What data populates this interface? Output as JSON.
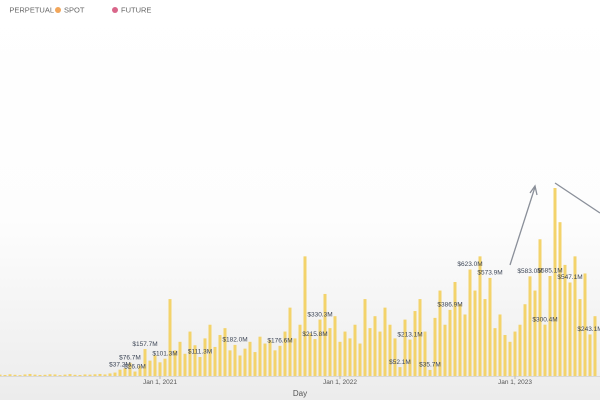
{
  "chart_data": {
    "type": "bar",
    "legend": [
      {
        "name": "PERPETUAL",
        "color": "#6f8fd6"
      },
      {
        "name": "SPOT",
        "color": "#f2a65a"
      },
      {
        "name": "FUTURE",
        "color": "#d9668a"
      }
    ],
    "x_label": "Day",
    "color": "#f3d36b",
    "categories": [
      null,
      null,
      null,
      null,
      null,
      null,
      null,
      null,
      null,
      null,
      null,
      null,
      null,
      null,
      null,
      null,
      null,
      null,
      null,
      null,
      null,
      null,
      null,
      null,
      null,
      null,
      null,
      null,
      null,
      null,
      null,
      null,
      "Jan 1, 2021",
      null,
      null,
      null,
      null,
      null,
      null,
      null,
      null,
      null,
      null,
      null,
      null,
      null,
      null,
      null,
      null,
      null,
      null,
      null,
      null,
      null,
      null,
      null,
      null,
      null,
      null,
      null,
      null,
      null,
      null,
      null,
      null,
      null,
      null,
      null,
      "Jan 1, 2022",
      null,
      null,
      null,
      null,
      null,
      null,
      null,
      null,
      null,
      null,
      null,
      null,
      null,
      null,
      null,
      null,
      null,
      null,
      null,
      null,
      null,
      null,
      null,
      null,
      null,
      null,
      null,
      null,
      null,
      null,
      null,
      null,
      null,
      null,
      "Jan 1, 2023",
      null,
      null,
      null,
      null,
      null,
      null,
      null,
      null,
      null,
      null,
      null,
      null,
      null,
      null,
      null,
      null
    ],
    "values": [
      8,
      6,
      10,
      7,
      5,
      9,
      12,
      8,
      6,
      7,
      10,
      9,
      5,
      8,
      11,
      7,
      6,
      9,
      8,
      10,
      12,
      9,
      15,
      20,
      37.2,
      45,
      76.7,
      26.0,
      60,
      157.7,
      90,
      120,
      80,
      101.3,
      450,
      150,
      200,
      130,
      260,
      180,
      111.3,
      220,
      300,
      170,
      240,
      280,
      150,
      182.0,
      120,
      160,
      200,
      140,
      230,
      190,
      210,
      150,
      176.6,
      260,
      400,
      220,
      300,
      700,
      250,
      215.8,
      330.3,
      480,
      280,
      350,
      200,
      260,
      220,
      300,
      190,
      450,
      280,
      350,
      260,
      400,
      300,
      220,
      52.1,
      330,
      213.1,
      380,
      450,
      260,
      35.7,
      340,
      500,
      300,
      386.9,
      550,
      420,
      360,
      623.0,
      500,
      700,
      450,
      573.9,
      280,
      360,
      240,
      200,
      260,
      300,
      420,
      583.0,
      500,
      800,
      300.4,
      585.1,
      1100,
      900,
      650,
      547.1,
      700,
      450,
      600,
      243.1,
      350
    ],
    "value_labels": [
      null,
      null,
      null,
      null,
      null,
      null,
      null,
      null,
      null,
      null,
      null,
      null,
      null,
      null,
      null,
      null,
      null,
      null,
      null,
      null,
      null,
      null,
      null,
      null,
      "$37.2M",
      null,
      "$76.7M",
      "$26.0M",
      null,
      "$157.7M",
      null,
      null,
      null,
      "$101.3M",
      null,
      null,
      null,
      null,
      null,
      null,
      "$111.3M",
      null,
      null,
      null,
      null,
      null,
      null,
      "$182.0M",
      null,
      null,
      null,
      null,
      null,
      null,
      null,
      null,
      "$176.6M",
      null,
      null,
      null,
      null,
      null,
      null,
      "$215.8M",
      "$330.3M",
      null,
      null,
      null,
      null,
      null,
      null,
      null,
      null,
      null,
      null,
      null,
      null,
      null,
      null,
      null,
      "$52.1M",
      null,
      "$213.1M",
      null,
      null,
      null,
      "$35.7M",
      null,
      null,
      null,
      "$386.9M",
      null,
      null,
      null,
      "$623.0M",
      null,
      null,
      null,
      "$573.9M",
      null,
      null,
      null,
      null,
      null,
      null,
      null,
      "$583.0M",
      null,
      null,
      "$300.4M",
      "$585.1M",
      null,
      null,
      null,
      "$547.1M",
      null,
      null,
      null,
      "$243.1M",
      null
    ]
  }
}
